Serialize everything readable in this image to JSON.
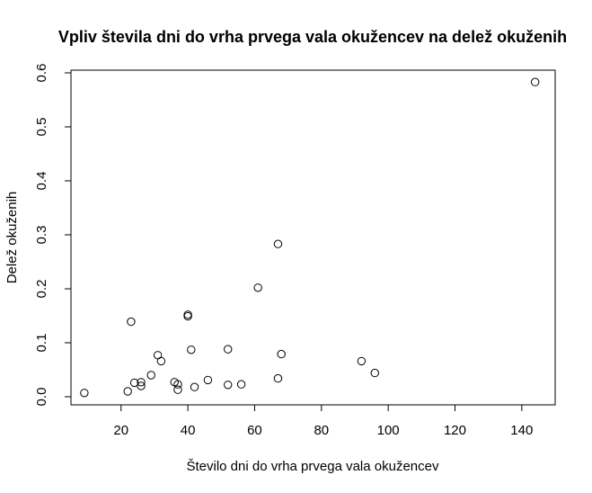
{
  "chart_data": {
    "type": "scatter",
    "title": "Vpliv števila dni do vrha prvega vala okužencev na delež okuženih",
    "xlabel": "Število dni do vrha prvega vala okužencev",
    "ylabel": "Delež okuženih",
    "xlim": [
      5,
      150
    ],
    "ylim": [
      -0.015,
      0.605
    ],
    "xticks": [
      20,
      40,
      60,
      80,
      100,
      120,
      140
    ],
    "yticks": [
      0.0,
      0.1,
      0.2,
      0.3,
      0.4,
      0.5,
      0.6
    ],
    "xtick_labels": [
      "20",
      "40",
      "60",
      "80",
      "100",
      "120",
      "140"
    ],
    "ytick_labels": [
      "0.0",
      "0.1",
      "0.2",
      "0.3",
      "0.4",
      "0.5",
      "0.6"
    ],
    "grid": false,
    "points": [
      {
        "x": 9,
        "y": 0.007
      },
      {
        "x": 22,
        "y": 0.01
      },
      {
        "x": 23,
        "y": 0.139
      },
      {
        "x": 24,
        "y": 0.026
      },
      {
        "x": 26,
        "y": 0.027
      },
      {
        "x": 26,
        "y": 0.02
      },
      {
        "x": 29,
        "y": 0.04
      },
      {
        "x": 31,
        "y": 0.077
      },
      {
        "x": 32,
        "y": 0.066
      },
      {
        "x": 36,
        "y": 0.027
      },
      {
        "x": 37,
        "y": 0.023
      },
      {
        "x": 37,
        "y": 0.013
      },
      {
        "x": 40,
        "y": 0.152
      },
      {
        "x": 40,
        "y": 0.149
      },
      {
        "x": 41,
        "y": 0.087
      },
      {
        "x": 42,
        "y": 0.018
      },
      {
        "x": 46,
        "y": 0.031
      },
      {
        "x": 52,
        "y": 0.088
      },
      {
        "x": 52,
        "y": 0.022
      },
      {
        "x": 56,
        "y": 0.023
      },
      {
        "x": 61,
        "y": 0.202
      },
      {
        "x": 67,
        "y": 0.283
      },
      {
        "x": 67,
        "y": 0.034
      },
      {
        "x": 68,
        "y": 0.079
      },
      {
        "x": 92,
        "y": 0.066
      },
      {
        "x": 96,
        "y": 0.044
      },
      {
        "x": 144,
        "y": 0.583
      }
    ]
  }
}
